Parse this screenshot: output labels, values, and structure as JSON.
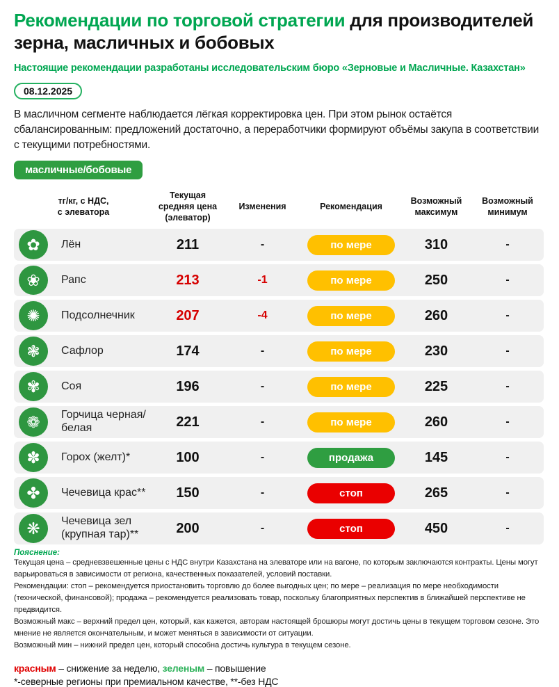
{
  "header": {
    "title_green": "Рекомендации по торговой стратегии ",
    "title_black": "для производителей зерна, масличных и бобовых",
    "subtitle": "Настоящие рекомендации разработаны исследовательским бюро «Зерновые и Масличные. Казахстан»",
    "date": "08.12.2025"
  },
  "intro": "В масличном сегменте наблюдается лёгкая корректировка цен. При этом рынок остаётся сбалансированным: предложений достаточно, а переработчики формируют объёмы закупа в соответствии с текущими потребностями.",
  "category_label": "масличные/бобовые",
  "colors": {
    "accent_green": "#00a651",
    "button_green": "#2f9e41",
    "icon_green": "#2e9640",
    "pill_yellow": "#ffc000",
    "pill_green": "#2f9e41",
    "pill_red": "#ea0000",
    "negative_red": "#d60000",
    "row_gray": "#f0f0f0"
  },
  "table": {
    "headers": [
      "тг/кг, с НДС,\nс элеватора",
      "Текущая\nсредняя цена\n(элеватор)",
      "Изменения",
      "Рекомендация",
      "Возможный\nмаксимум",
      "Возможный\nминимум"
    ],
    "rows": [
      {
        "icon": "flax-flower-icon",
        "glyph": "✿",
        "name": "Лён",
        "price": "211",
        "price_red": false,
        "change": "-",
        "change_red": false,
        "rec": "по мере",
        "rec_color": "yellow",
        "max": "310",
        "min": "-"
      },
      {
        "icon": "rapeseed-icon",
        "glyph": "❀",
        "name": "Рапс",
        "price": "213",
        "price_red": true,
        "change": "-1",
        "change_red": true,
        "rec": "по мере",
        "rec_color": "yellow",
        "max": "250",
        "min": "-"
      },
      {
        "icon": "sunflower-icon",
        "glyph": "✺",
        "name": "Подсолнечник",
        "price": "207",
        "price_red": true,
        "change": "-4",
        "change_red": true,
        "rec": "по мере",
        "rec_color": "yellow",
        "max": "260",
        "min": "-"
      },
      {
        "icon": "safflower-icon",
        "glyph": "❃",
        "name": "Сафлор",
        "price": "174",
        "price_red": false,
        "change": "-",
        "change_red": false,
        "rec": "по мере",
        "rec_color": "yellow",
        "max": "230",
        "min": "-"
      },
      {
        "icon": "soybean-pod-icon",
        "glyph": "✾",
        "name": "Соя",
        "price": "196",
        "price_red": false,
        "change": "-",
        "change_red": false,
        "rec": "по мере",
        "rec_color": "yellow",
        "max": "225",
        "min": "-"
      },
      {
        "icon": "mustard-icon",
        "glyph": "❁",
        "name": "Горчица черная/белая",
        "price": "221",
        "price_red": false,
        "change": "-",
        "change_red": false,
        "rec": "по мере",
        "rec_color": "yellow",
        "max": "260",
        "min": "-"
      },
      {
        "icon": "pea-pod-icon",
        "glyph": "✽",
        "name": "Горох (желт)*",
        "price": "100",
        "price_red": false,
        "change": "-",
        "change_red": false,
        "rec": "продажа",
        "rec_color": "green",
        "max": "145",
        "min": "-"
      },
      {
        "icon": "red-lentil-icon",
        "glyph": "✤",
        "name": "Чечевица крас**",
        "price": "150",
        "price_red": false,
        "change": "-",
        "change_red": false,
        "rec": "стоп",
        "rec_color": "red",
        "max": "265",
        "min": "-"
      },
      {
        "icon": "green-lentil-icon",
        "glyph": "❋",
        "name": "Чечевица зел (крупная тар)**",
        "price": "200",
        "price_red": false,
        "change": "-",
        "change_red": false,
        "rec": "стоп",
        "rec_color": "red",
        "max": "450",
        "min": "-"
      }
    ]
  },
  "footer": {
    "explain_title": "Пояснение:",
    "paragraphs": [
      "Текущая цена – средневзвешенные цены с НДС внутри Казахстана на элеваторе или на вагоне, по которым заключаются контракты. Цены могут варьироваться в зависимости от региона, качественных показателей, условий поставки.",
      "Рекомендации: стоп – рекомендуется приостановить торговлю до более выгодных цен; по мере – реализация по мере необходимости (технической, финансовой); продажа – рекомендуется реализовать товар, поскольку благоприятных перспектив в ближайшей перспективе не предвидится.",
      "Возможный макс – верхний предел цен, который, как кажется, авторам настоящей брошюры могут достичь цены в текущем торговом сезоне. Это мнение не является окончательным, и может меняться в зависимости от ситуации.",
      "Возможный мин – нижний предел цен, который способна достичь культура в текущем сезоне."
    ],
    "legend": {
      "red_word": "красным",
      "red_text": " – снижение за неделю, ",
      "green_word": "зеленым",
      "green_text": " – повышение"
    },
    "asterisks": "*-северные регионы при премиальном качестве, **-без НДС"
  }
}
